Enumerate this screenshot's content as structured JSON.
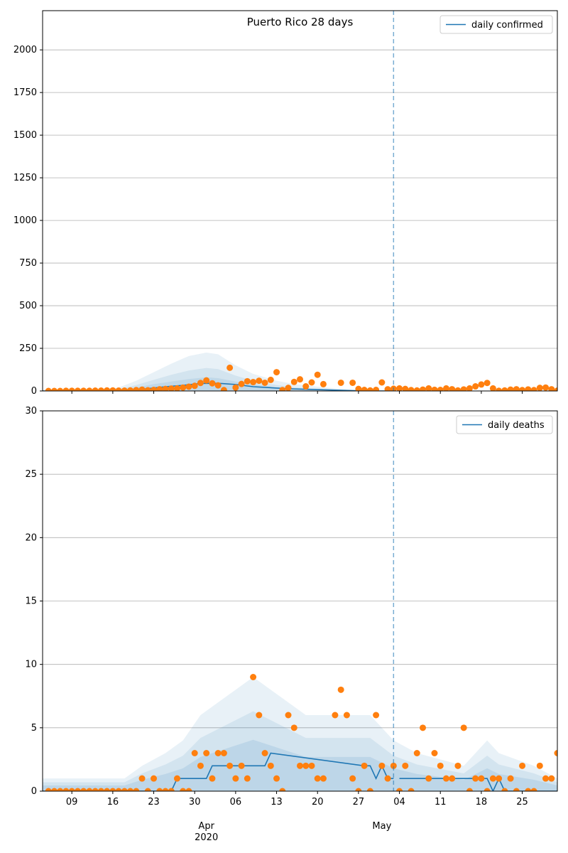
{
  "chart_data": [
    {
      "type": "line",
      "title": "Puerto Rico 28 days",
      "legend": [
        "daily confirmed"
      ],
      "legend_position": "top-right",
      "grid": "horizontal",
      "x_range": [
        "2020-03-04",
        "2020-05-31"
      ],
      "ylim": [
        0,
        2230
      ],
      "y_ticks": [
        0,
        250,
        500,
        750,
        1000,
        1250,
        1500,
        1750,
        2000
      ],
      "vline_date": "2020-05-03",
      "series": [
        {
          "name": "daily confirmed",
          "x": [
            "2020-03-04",
            "2020-03-11",
            "2020-03-16",
            "2020-03-21",
            "2020-03-25",
            "2020-03-28",
            "2020-03-31",
            "2020-04-03",
            "2020-04-06",
            "2020-04-09",
            "2020-04-13",
            "2020-04-16",
            "2020-04-20",
            "2020-04-24",
            "2020-04-27",
            "2020-04-30",
            "2020-05-03"
          ],
          "y": [
            0,
            1,
            3,
            10,
            25,
            33,
            44,
            45,
            38,
            25,
            17,
            12,
            8,
            4,
            1,
            0,
            0
          ]
        },
        {
          "name": "band-outer-upper",
          "x": [
            "2020-03-04",
            "2020-03-13",
            "2020-03-17",
            "2020-03-20",
            "2020-03-23",
            "2020-03-26",
            "2020-03-29",
            "2020-04-01",
            "2020-04-03",
            "2020-04-06",
            "2020-04-09",
            "2020-04-13",
            "2020-04-16",
            "2020-04-20",
            "2020-04-24",
            "2020-04-28",
            "2020-05-03"
          ],
          "y": [
            0,
            5,
            20,
            60,
            110,
            160,
            205,
            225,
            215,
            150,
            100,
            60,
            40,
            25,
            12,
            5,
            0
          ]
        },
        {
          "name": "band-mid-upper",
          "x": [
            "2020-03-04",
            "2020-03-13",
            "2020-03-17",
            "2020-03-20",
            "2020-03-23",
            "2020-03-26",
            "2020-03-29",
            "2020-04-01",
            "2020-04-03",
            "2020-04-06",
            "2020-04-09",
            "2020-04-13",
            "2020-04-16",
            "2020-04-20",
            "2020-04-24",
            "2020-04-28",
            "2020-05-03"
          ],
          "y": [
            0,
            3,
            10,
            35,
            65,
            95,
            120,
            135,
            128,
            90,
            60,
            35,
            22,
            12,
            6,
            2,
            0
          ]
        },
        {
          "name": "band-inner-upper",
          "x": [
            "2020-03-04",
            "2020-03-13",
            "2020-03-17",
            "2020-03-20",
            "2020-03-23",
            "2020-03-26",
            "2020-03-29",
            "2020-04-01",
            "2020-04-03",
            "2020-04-06",
            "2020-04-09",
            "2020-04-13",
            "2020-04-16",
            "2020-04-20",
            "2020-04-24",
            "2020-04-28",
            "2020-05-03"
          ],
          "y": [
            0,
            2,
            6,
            20,
            40,
            55,
            70,
            80,
            75,
            55,
            38,
            22,
            14,
            8,
            4,
            1,
            0
          ]
        },
        {
          "name": "observed",
          "x": [
            "2020-03-05",
            "2020-03-06",
            "2020-03-07",
            "2020-03-08",
            "2020-03-09",
            "2020-03-10",
            "2020-03-11",
            "2020-03-12",
            "2020-03-13",
            "2020-03-14",
            "2020-03-15",
            "2020-03-16",
            "2020-03-17",
            "2020-03-18",
            "2020-03-19",
            "2020-03-20",
            "2020-03-21",
            "2020-03-22",
            "2020-03-23",
            "2020-03-24",
            "2020-03-25",
            "2020-03-26",
            "2020-03-27",
            "2020-03-28",
            "2020-03-29",
            "2020-03-30",
            "2020-03-31",
            "2020-04-01",
            "2020-04-02",
            "2020-04-03",
            "2020-04-04",
            "2020-04-05",
            "2020-04-06",
            "2020-04-07",
            "2020-04-08",
            "2020-04-09",
            "2020-04-10",
            "2020-04-11",
            "2020-04-12",
            "2020-04-13",
            "2020-04-14",
            "2020-04-15",
            "2020-04-16",
            "2020-04-17",
            "2020-04-18",
            "2020-04-19",
            "2020-04-20",
            "2020-04-21",
            "2020-04-24",
            "2020-04-26",
            "2020-04-27",
            "2020-04-28",
            "2020-04-29",
            "2020-04-30",
            "2020-05-01",
            "2020-05-02",
            "2020-05-03",
            "2020-05-04",
            "2020-05-05",
            "2020-05-06",
            "2020-05-07",
            "2020-05-08",
            "2020-05-09",
            "2020-05-10",
            "2020-05-11",
            "2020-05-12",
            "2020-05-13",
            "2020-05-14",
            "2020-05-15",
            "2020-05-16",
            "2020-05-17",
            "2020-05-18",
            "2020-05-19",
            "2020-05-20",
            "2020-05-21",
            "2020-05-22",
            "2020-05-23",
            "2020-05-24",
            "2020-05-25",
            "2020-05-26",
            "2020-05-27",
            "2020-05-28",
            "2020-05-29",
            "2020-05-30",
            "2020-05-31"
          ],
          "y": [
            0,
            0,
            0,
            1,
            1,
            1,
            1,
            1,
            2,
            2,
            3,
            3,
            2,
            2,
            3,
            5,
            8,
            4,
            6,
            10,
            12,
            14,
            15,
            20,
            25,
            30,
            47,
            62,
            45,
            33,
            5,
            136,
            20,
            41,
            57,
            52,
            60,
            48,
            65,
            110,
            5,
            18,
            53,
            68,
            27,
            50,
            95,
            40,
            48,
            48,
            12,
            6,
            3,
            6,
            50,
            10,
            13,
            15,
            12,
            5,
            3,
            8,
            15,
            7,
            6,
            15,
            10,
            3,
            9,
            15,
            27,
            38,
            47,
            15,
            1,
            3,
            8,
            10,
            5,
            9,
            5,
            18,
            20,
            10,
            2
          ]
        }
      ]
    },
    {
      "type": "line",
      "legend": [
        "daily deaths"
      ],
      "legend_position": "top-right",
      "grid": "horizontal",
      "x_range": [
        "2020-03-04",
        "2020-05-31"
      ],
      "ylim": [
        0,
        30
      ],
      "y_ticks": [
        0,
        5,
        10,
        15,
        20,
        25,
        30
      ],
      "x_ticks": [
        "09",
        "16",
        "23",
        "30",
        "06",
        "13",
        "20",
        "27",
        "04",
        "11",
        "18",
        "25"
      ],
      "x_months": [
        "Apr\n2020",
        "May"
      ],
      "vline_date": "2020-05-03",
      "series": [
        {
          "name": "daily deaths",
          "x": [
            "2020-03-04",
            "2020-03-26",
            "2020-03-27",
            "2020-04-01",
            "2020-04-02",
            "2020-04-11",
            "2020-04-12",
            "2020-04-28",
            "2020-04-29",
            "2020-04-30",
            "2020-05-01",
            "2020-05-02",
            "2020-05-03"
          ],
          "y": [
            0,
            0,
            1,
            1,
            2,
            2,
            3,
            2,
            2,
            1,
            2,
            1,
            1
          ]
        },
        {
          "name": "daily deaths (after)",
          "x": [
            "2020-05-04",
            "2020-05-19",
            "2020-05-20",
            "2020-05-21",
            "2020-05-22",
            "2020-05-31"
          ],
          "y": [
            1,
            1,
            0,
            1,
            0,
            0
          ]
        },
        {
          "name": "observed",
          "x": [
            "2020-03-05",
            "2020-03-06",
            "2020-03-07",
            "2020-03-08",
            "2020-03-09",
            "2020-03-10",
            "2020-03-11",
            "2020-03-12",
            "2020-03-13",
            "2020-03-14",
            "2020-03-15",
            "2020-03-16",
            "2020-03-17",
            "2020-03-18",
            "2020-03-19",
            "2020-03-20",
            "2020-03-21",
            "2020-03-22",
            "2020-03-23",
            "2020-03-24",
            "2020-03-25",
            "2020-03-26",
            "2020-03-27",
            "2020-03-28",
            "2020-03-29",
            "2020-03-30",
            "2020-03-31",
            "2020-04-01",
            "2020-04-02",
            "2020-04-03",
            "2020-04-04",
            "2020-04-05",
            "2020-04-06",
            "2020-04-07",
            "2020-04-08",
            "2020-04-09",
            "2020-04-10",
            "2020-04-11",
            "2020-04-12",
            "2020-04-13",
            "2020-04-14",
            "2020-04-15",
            "2020-04-16",
            "2020-04-17",
            "2020-04-18",
            "2020-04-19",
            "2020-04-20",
            "2020-04-21",
            "2020-04-23",
            "2020-04-24",
            "2020-04-25",
            "2020-04-26",
            "2020-04-27",
            "2020-04-28",
            "2020-04-29",
            "2020-04-30",
            "2020-05-01",
            "2020-05-02",
            "2020-05-03",
            "2020-05-04",
            "2020-05-05",
            "2020-05-06",
            "2020-05-07",
            "2020-05-08",
            "2020-05-09",
            "2020-05-10",
            "2020-05-11",
            "2020-05-12",
            "2020-05-13",
            "2020-05-14",
            "2020-05-15",
            "2020-05-16",
            "2020-05-17",
            "2020-05-18",
            "2020-05-19",
            "2020-05-20",
            "2020-05-21",
            "2020-05-22",
            "2020-05-23",
            "2020-05-24",
            "2020-05-25",
            "2020-05-26",
            "2020-05-27",
            "2020-05-28",
            "2020-05-29",
            "2020-05-30",
            "2020-05-31"
          ],
          "y": [
            0,
            0,
            0,
            0,
            0,
            0,
            0,
            0,
            0,
            0,
            0,
            0,
            0,
            0,
            0,
            0,
            1,
            0,
            1,
            0,
            0,
            0,
            1,
            0,
            0,
            3,
            2,
            3,
            1,
            3,
            3,
            2,
            1,
            2,
            1,
            9,
            6,
            3,
            2,
            1,
            0,
            6,
            5,
            2,
            2,
            2,
            1,
            1,
            6,
            8,
            6,
            1,
            0,
            2,
            0,
            6,
            2,
            1,
            2,
            0,
            2,
            0,
            3,
            5,
            1,
            3,
            2,
            1,
            1,
            2,
            5,
            0,
            1,
            1,
            0,
            1,
            1,
            0,
            1,
            0,
            2,
            0,
            0,
            2,
            1,
            1,
            3
          ]
        }
      ]
    }
  ]
}
